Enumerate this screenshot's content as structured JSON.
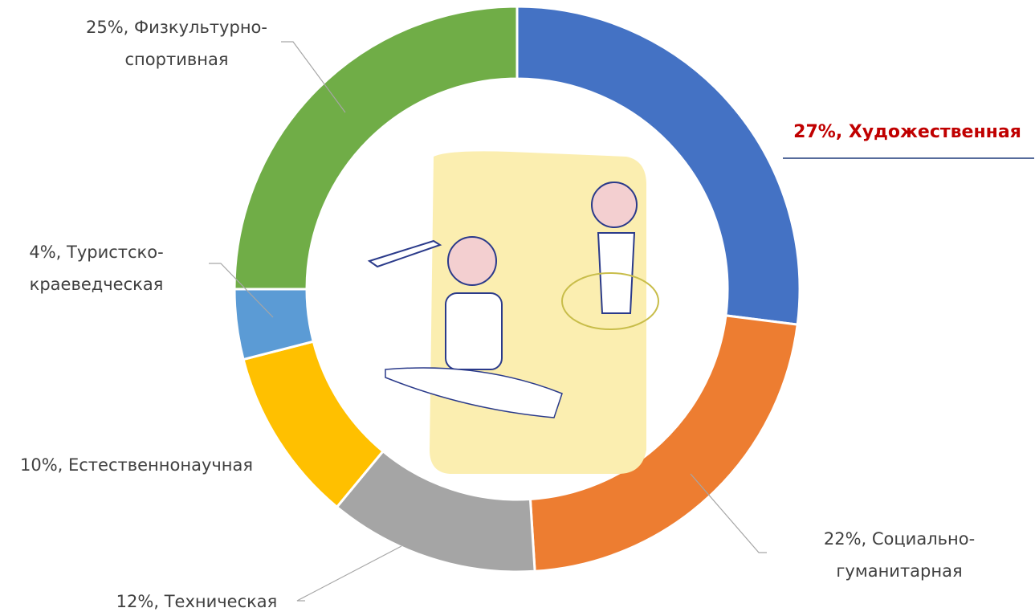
{
  "chart_data": {
    "type": "donut",
    "values": [
      27,
      22,
      12,
      10,
      4,
      25
    ],
    "value_labels": [
      "27%, Художественная",
      "22%, Социально-\nгуманитарная",
      "12%, Техническая",
      "10%, Естественнонаучная",
      "4%, Туристско-\nкраеведческая",
      "25%, Физкультурно-\nспортивная"
    ],
    "colors": [
      "#4472c4",
      "#ed7d31",
      "#a5a5a5",
      "#ffc000",
      "#5b9bd5",
      "#70ad47"
    ]
  }
}
